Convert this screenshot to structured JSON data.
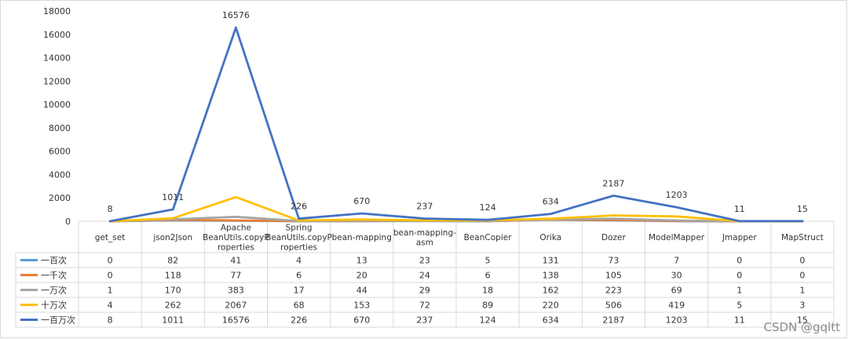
{
  "watermark": "CSDN @gqltt",
  "chart_data": {
    "type": "line",
    "categories": [
      [
        "get_set"
      ],
      [
        "json2Json"
      ],
      [
        "Apache",
        "BeanUtils.copyP",
        "roperties"
      ],
      [
        "Spring",
        "BeanUtils.copyP",
        "roperties"
      ],
      [
        "bean-mapping"
      ],
      [
        "bean-mapping-",
        "asm"
      ],
      [
        "BeanCopier"
      ],
      [
        "Orika"
      ],
      [
        "Dozer"
      ],
      [
        "ModelMapper"
      ],
      [
        "Jmapper"
      ],
      [
        "MapStruct"
      ]
    ],
    "series": [
      {
        "name": "一百次",
        "color": "#5b9bd5",
        "values": [
          0,
          82,
          41,
          4,
          13,
          23,
          5,
          131,
          73,
          7,
          0,
          0
        ]
      },
      {
        "name": "一千次",
        "color": "#ed7d31",
        "values": [
          0,
          118,
          77,
          6,
          20,
          24,
          6,
          138,
          105,
          30,
          0,
          0
        ]
      },
      {
        "name": "一万次",
        "color": "#a5a5a5",
        "values": [
          1,
          170,
          383,
          17,
          44,
          29,
          18,
          162,
          223,
          69,
          1,
          1
        ]
      },
      {
        "name": "十万次",
        "color": "#ffc000",
        "values": [
          4,
          262,
          2067,
          68,
          153,
          72,
          89,
          220,
          506,
          419,
          5,
          3
        ]
      },
      {
        "name": "一百万次",
        "color": "#4472c4",
        "values": [
          8,
          1011,
          16576,
          226,
          670,
          237,
          124,
          634,
          2187,
          1203,
          11,
          15
        ]
      }
    ],
    "labeled_series": "一百万次",
    "ylim": [
      0,
      18000
    ],
    "yticks": [
      0,
      2000,
      4000,
      6000,
      8000,
      10000,
      12000,
      14000,
      16000,
      18000
    ],
    "grid": false,
    "legend": "data-table"
  }
}
